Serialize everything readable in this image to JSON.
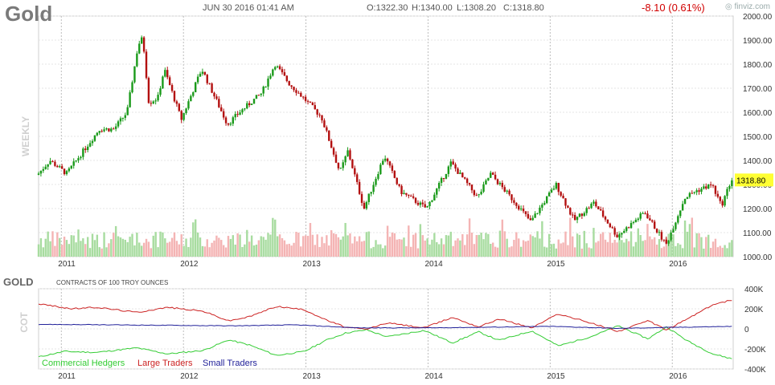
{
  "header": {
    "ticker": "Gold",
    "datetime": "JUN 30 2016 01:41 AM",
    "open": "O:1322.30",
    "high": "H:1340.00",
    "low": "L:1308.20",
    "close": "C:1318.80",
    "change": "-8.10 (0.61%)",
    "brand": "finviz.com"
  },
  "colors": {
    "up": "#1a9a1a",
    "down": "#b31010",
    "vol_up": "#a8dca0",
    "vol_down": "#f4b4b4",
    "price_tag": "#ffff33",
    "commercial": "#33cc33",
    "large": "#cc2222",
    "small": "#22229a"
  },
  "chart_data": [
    {
      "type": "candlestick",
      "ylabel": "WEEKLY",
      "ylim": [
        1000,
        2000
      ],
      "y_ticks": [
        "2000.00",
        "1900.00",
        "1800.00",
        "1700.00",
        "1600.00",
        "1500.00",
        "1400.00",
        "1300.00",
        "1200.00",
        "1100.00",
        "1000.00"
      ],
      "x_ticks": [
        "2011",
        "2012",
        "2013",
        "2014",
        "2015",
        "2016"
      ],
      "last_price": "1318.80",
      "keypoints": [
        [
          "2010-10-25",
          1340
        ],
        [
          "2010-12-01",
          1400
        ],
        [
          "2011-01-20",
          1345
        ],
        [
          "2011-04-28",
          1530
        ],
        [
          "2011-06-10",
          1530
        ],
        [
          "2011-07-20",
          1600
        ],
        [
          "2011-08-22",
          1880
        ],
        [
          "2011-09-05",
          1910
        ],
        [
          "2011-09-23",
          1640
        ],
        [
          "2011-10-20",
          1660
        ],
        [
          "2011-11-08",
          1780
        ],
        [
          "2011-12-29",
          1570
        ],
        [
          "2012-02-28",
          1780
        ],
        [
          "2012-05-15",
          1550
        ],
        [
          "2012-06-20",
          1600
        ],
        [
          "2012-08-25",
          1680
        ],
        [
          "2012-10-04",
          1800
        ],
        [
          "2012-11-15",
          1720
        ],
        [
          "2012-12-28",
          1660
        ],
        [
          "2013-02-20",
          1580
        ],
        [
          "2013-04-16",
          1350
        ],
        [
          "2013-05-10",
          1440
        ],
        [
          "2013-06-27",
          1200
        ],
        [
          "2013-08-27",
          1420
        ],
        [
          "2013-10-15",
          1270
        ],
        [
          "2013-12-31",
          1200
        ],
        [
          "2014-03-14",
          1390
        ],
        [
          "2014-06-02",
          1245
        ],
        [
          "2014-07-10",
          1345
        ],
        [
          "2014-10-01",
          1210
        ],
        [
          "2014-11-07",
          1145
        ],
        [
          "2015-01-22",
          1300
        ],
        [
          "2015-03-17",
          1150
        ],
        [
          "2015-05-15",
          1225
        ],
        [
          "2015-07-24",
          1085
        ],
        [
          "2015-10-14",
          1185
        ],
        [
          "2015-12-17",
          1050
        ],
        [
          "2016-02-11",
          1245
        ],
        [
          "2016-03-10",
          1270
        ],
        [
          "2016-05-02",
          1300
        ],
        [
          "2016-05-30",
          1210
        ],
        [
          "2016-06-29",
          1320
        ]
      ],
      "volume": "weekly volume histogram (values not labeled)"
    },
    {
      "type": "line",
      "title": "GOLD",
      "subtitle": "CONTRACTS OF 100 TROY OUNCES",
      "ylabel": "COT",
      "ylim": [
        -400000,
        400000
      ],
      "y_ticks": [
        "400K",
        "200K",
        "0",
        "-200K",
        "-400K"
      ],
      "x_ticks": [
        "2011",
        "2012",
        "2013",
        "2014",
        "2015",
        "2016"
      ],
      "series": [
        {
          "name": "Commercial Hedgers",
          "points": [
            [
              "2010-10-25",
              -280000
            ],
            [
              "2011-01-10",
              -225000
            ],
            [
              "2011-04-15",
              -235000
            ],
            [
              "2011-08-15",
              -190000
            ],
            [
              "2011-11-15",
              -250000
            ],
            [
              "2012-03-01",
              -215000
            ],
            [
              "2012-05-15",
              -110000
            ],
            [
              "2012-07-15",
              -160000
            ],
            [
              "2012-10-05",
              -265000
            ],
            [
              "2012-12-28",
              -225000
            ],
            [
              "2013-03-01",
              -115000
            ],
            [
              "2013-05-01",
              -40000
            ],
            [
              "2013-07-01",
              -10000
            ],
            [
              "2013-09-01",
              -80000
            ],
            [
              "2013-12-20",
              -15000
            ],
            [
              "2014-03-15",
              -140000
            ],
            [
              "2014-06-01",
              -30000
            ],
            [
              "2014-08-01",
              -115000
            ],
            [
              "2014-11-07",
              -20000
            ],
            [
              "2015-01-25",
              -170000
            ],
            [
              "2015-05-01",
              -80000
            ],
            [
              "2015-07-24",
              30000
            ],
            [
              "2015-10-20",
              -100000
            ],
            [
              "2015-12-15",
              20000
            ],
            [
              "2016-02-15",
              -120000
            ],
            [
              "2016-05-01",
              -250000
            ],
            [
              "2016-06-29",
              -300000
            ]
          ]
        },
        {
          "name": "Large Traders",
          "points": [
            [
              "2010-10-25",
              250000
            ],
            [
              "2011-02-01",
              200000
            ],
            [
              "2011-04-15",
              215000
            ],
            [
              "2011-08-15",
              165000
            ],
            [
              "2011-11-15",
              215000
            ],
            [
              "2012-03-01",
              175000
            ],
            [
              "2012-05-15",
              80000
            ],
            [
              "2012-07-15",
              120000
            ],
            [
              "2012-10-05",
              225000
            ],
            [
              "2012-12-28",
              190000
            ],
            [
              "2013-03-01",
              90000
            ],
            [
              "2013-05-01",
              15000
            ],
            [
              "2013-07-01",
              -5000
            ],
            [
              "2013-09-01",
              60000
            ],
            [
              "2013-12-20",
              10000
            ],
            [
              "2014-03-15",
              115000
            ],
            [
              "2014-06-01",
              20000
            ],
            [
              "2014-08-01",
              100000
            ],
            [
              "2014-11-07",
              10000
            ],
            [
              "2015-01-25",
              150000
            ],
            [
              "2015-05-01",
              60000
            ],
            [
              "2015-07-24",
              -25000
            ],
            [
              "2015-10-20",
              80000
            ],
            [
              "2015-12-15",
              -10000
            ],
            [
              "2016-02-15",
              100000
            ],
            [
              "2016-05-01",
              240000
            ],
            [
              "2016-06-29",
              290000
            ]
          ]
        },
        {
          "name": "Small Traders",
          "points": [
            [
              "2010-10-25",
              45000
            ],
            [
              "2011-06-01",
              40000
            ],
            [
              "2012-06-01",
              30000
            ],
            [
              "2012-12-01",
              40000
            ],
            [
              "2013-06-01",
              10000
            ],
            [
              "2014-01-01",
              10000
            ],
            [
              "2014-06-01",
              15000
            ],
            [
              "2015-01-01",
              25000
            ],
            [
              "2015-07-24",
              5000
            ],
            [
              "2016-01-01",
              15000
            ],
            [
              "2016-06-29",
              25000
            ]
          ]
        }
      ]
    }
  ]
}
